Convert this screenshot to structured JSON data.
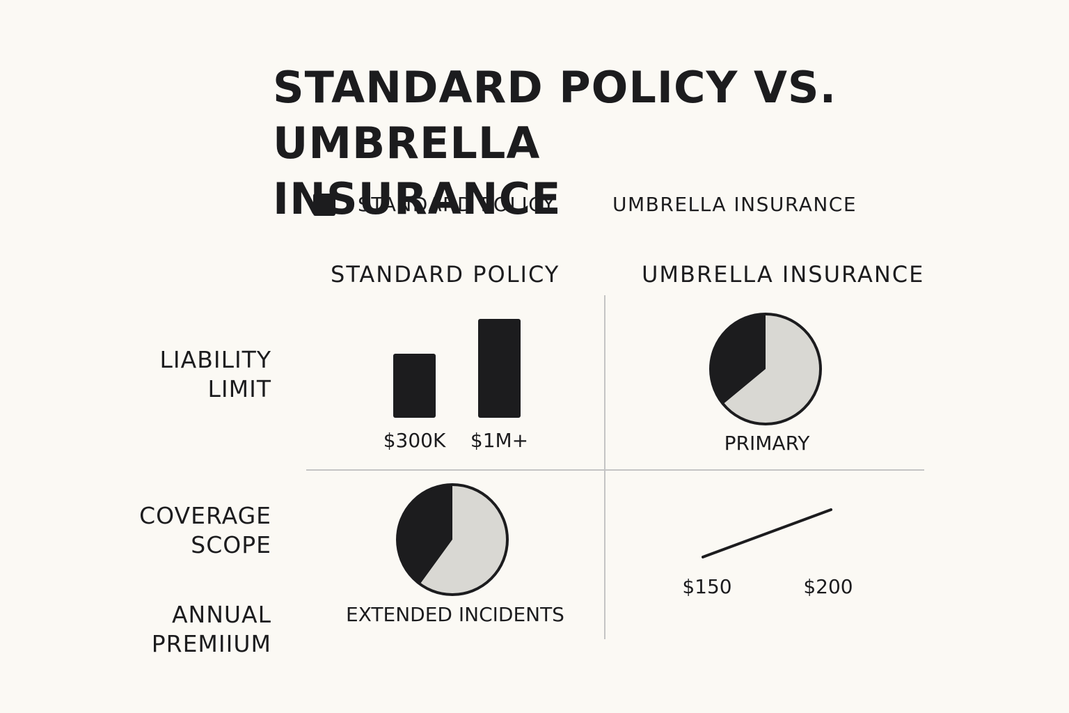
{
  "title_line1": "STANDARD POLICY VS.",
  "title_line2": "UMBRELLA INSURANCE",
  "legend": {
    "items": [
      {
        "label": "STANDARD POLICY",
        "color": "#1c1c1e"
      },
      {
        "label": "UMBRELLA INSURANCE",
        "color": ""
      }
    ]
  },
  "columns": [
    "STANDARD POLICY",
    "UMBRELLA INSURANCE"
  ],
  "rows": [
    {
      "line1": "LIABILITY",
      "line2": "LIMIT"
    },
    {
      "line1": "COVERAGE",
      "line2": "SCOPE"
    },
    {
      "line1": "ANNUAL",
      "line2": "PREMIIUM"
    }
  ],
  "colors": {
    "dark": "#1c1c1e",
    "light": "#d9d8d3",
    "grid": "#c4c4c4"
  },
  "chart_data": [
    {
      "type": "bar",
      "categories": [
        "$300K",
        "$1M+"
      ],
      "values": [
        300000,
        1000000
      ],
      "note_scale": "bars drawn relative heights"
    },
    {
      "type": "pie",
      "slices": [
        {
          "label": "",
          "value": 36,
          "color": "#1c1c1e"
        },
        {
          "label": "",
          "value": 64,
          "color": "#d9d8d3"
        }
      ],
      "caption": "PRIMARY"
    },
    {
      "type": "pie",
      "slices": [
        {
          "label": "",
          "value": 40,
          "color": "#1c1c1e"
        },
        {
          "label": "",
          "value": 60,
          "color": "#d9d8d3"
        }
      ],
      "caption": "EXTENDED INCIDENTS"
    },
    {
      "type": "line",
      "x": [
        0,
        1,
        2
      ],
      "y": [
        150,
        175,
        200
      ],
      "tick_labels": [
        "$150",
        "$200"
      ]
    }
  ]
}
